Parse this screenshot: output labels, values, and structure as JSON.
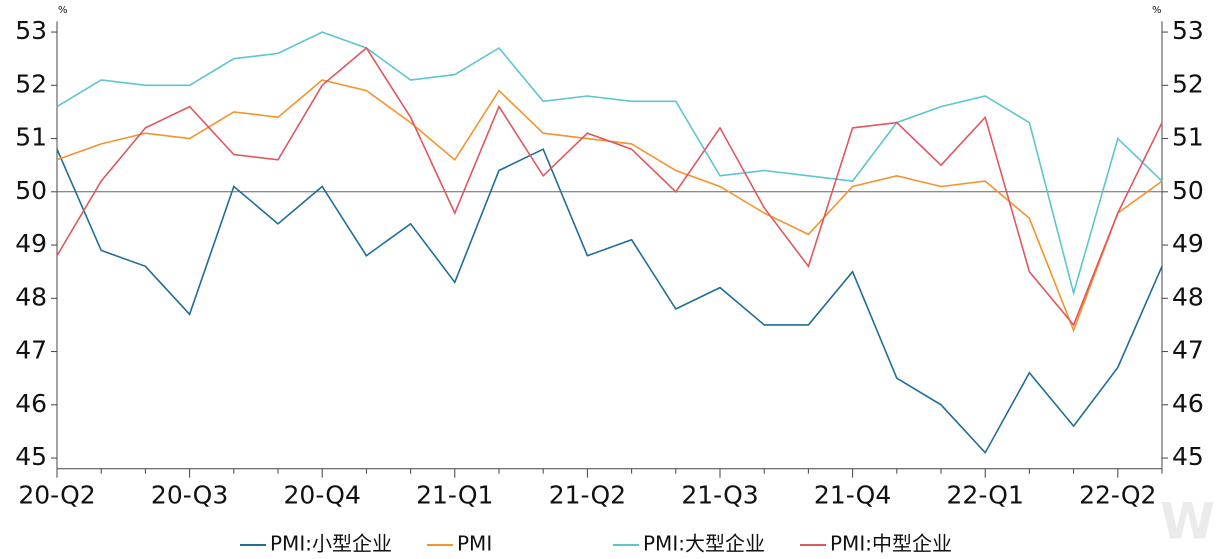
{
  "chart_data": {
    "type": "line",
    "categories": [
      "20-Q2",
      null,
      null,
      "20-Q3",
      null,
      null,
      "20-Q4",
      null,
      null,
      "21-Q1",
      null,
      null,
      "21-Q2",
      null,
      null,
      "21-Q3",
      null,
      null,
      "21-Q4",
      null,
      null,
      "22-Q1",
      null,
      null,
      "22-Q2",
      null
    ],
    "series": [
      {
        "name": "PMI:小型企业",
        "color": "#1f6e96",
        "values": [
          50.8,
          48.9,
          48.6,
          47.7,
          50.1,
          49.4,
          50.1,
          48.8,
          49.4,
          48.3,
          50.4,
          50.8,
          48.8,
          49.1,
          47.8,
          48.2,
          47.5,
          47.5,
          48.5,
          46.5,
          46.0,
          45.1,
          46.6,
          45.6,
          46.7,
          48.6
        ]
      },
      {
        "name": "PMI",
        "color": "#f5932d",
        "values": [
          50.6,
          50.9,
          51.1,
          51.0,
          51.5,
          51.4,
          52.1,
          51.9,
          51.3,
          50.6,
          51.9,
          51.1,
          51.0,
          50.9,
          50.4,
          50.1,
          49.6,
          49.2,
          50.1,
          50.3,
          50.1,
          50.2,
          49.5,
          47.4,
          49.6,
          50.2
        ]
      },
      {
        "name": "PMI:大型企业",
        "color": "#5cc6cc",
        "values": [
          51.6,
          52.1,
          52.0,
          52.0,
          52.5,
          52.6,
          53.0,
          52.7,
          52.1,
          52.2,
          52.7,
          51.7,
          51.8,
          51.7,
          51.7,
          50.3,
          50.4,
          50.3,
          50.2,
          51.3,
          51.6,
          51.8,
          51.3,
          48.1,
          51.0,
          50.2
        ]
      },
      {
        "name": "PMI:中型企业",
        "color": "#e0575f",
        "values": [
          48.8,
          50.2,
          51.2,
          51.6,
          50.7,
          50.6,
          52.0,
          52.7,
          51.4,
          49.6,
          51.6,
          50.3,
          51.1,
          50.8,
          50.0,
          51.2,
          49.7,
          48.6,
          51.2,
          51.3,
          50.5,
          51.4,
          48.5,
          47.5,
          49.6,
          51.3
        ]
      }
    ],
    "ylim": [
      44.8,
      53.2
    ],
    "yticks": [
      45,
      46,
      47,
      48,
      49,
      50,
      51,
      52,
      53
    ],
    "y2lim": [
      44.8,
      53.2
    ],
    "y2ticks": [
      45,
      46,
      47,
      48,
      49,
      50,
      51,
      52,
      53
    ],
    "y_label": "%",
    "y2_label": "%",
    "reference_line": 50,
    "legend": "bottom",
    "watermark": "Wind"
  }
}
